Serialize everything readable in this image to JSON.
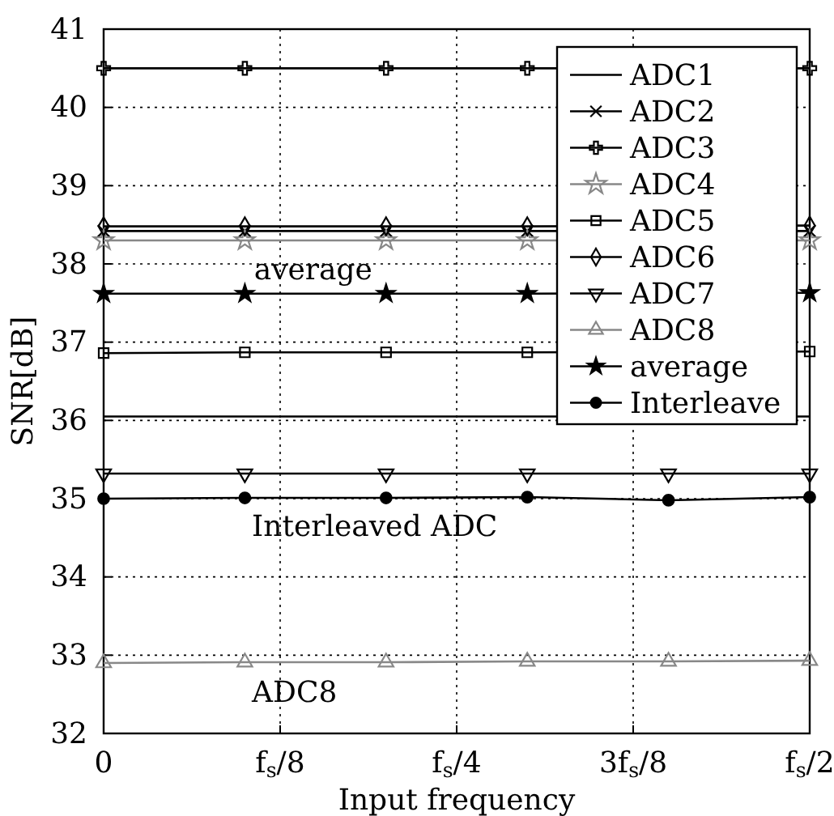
{
  "chart_data": {
    "type": "line",
    "xlabel": "Input frequency",
    "ylabel": "SNR[dB]",
    "categories": [
      null,
      null,
      null,
      null,
      null,
      null
    ],
    "ylim": [
      32,
      41
    ],
    "yticks": [
      32,
      33,
      34,
      35,
      36,
      37,
      38,
      39,
      40,
      41
    ],
    "grid": true,
    "legend": "top right",
    "line_style": "solid",
    "series": [
      {
        "name": "ADC1",
        "color": "#000000",
        "marker": "none",
        "values": [
          36.05,
          36.05,
          36.05,
          36.05,
          null,
          36.05
        ]
      },
      {
        "name": "ADC2",
        "color": "#000000",
        "marker": "x",
        "values": [
          38.42,
          38.42,
          38.42,
          38.42,
          null,
          38.42
        ]
      },
      {
        "name": "ADC3",
        "color": "#000000",
        "marker": "cross",
        "values": [
          40.5,
          40.5,
          40.5,
          40.5,
          null,
          40.5
        ]
      },
      {
        "name": "ADC4",
        "color": "#888888",
        "marker": "star",
        "values": [
          38.3,
          38.3,
          38.3,
          38.3,
          null,
          38.3
        ]
      },
      {
        "name": "ADC5",
        "color": "#000000",
        "marker": "square",
        "values": [
          36.86,
          36.87,
          36.87,
          36.87,
          null,
          36.88
        ]
      },
      {
        "name": "ADC6",
        "color": "#000000",
        "marker": "diamond",
        "values": [
          38.48,
          38.48,
          38.48,
          38.48,
          null,
          38.49
        ]
      },
      {
        "name": "ADC7",
        "color": "#000000",
        "marker": "triangle-down",
        "values": [
          35.32,
          35.32,
          35.32,
          35.32,
          35.32,
          35.32
        ]
      },
      {
        "name": "ADC8",
        "color": "#888888",
        "marker": "triangle",
        "values": [
          32.9,
          32.91,
          32.91,
          32.92,
          32.92,
          32.93
        ]
      },
      {
        "name": "average",
        "color": "#000000",
        "marker": "star",
        "values": [
          37.62,
          37.62,
          37.62,
          37.62,
          null,
          37.63
        ]
      },
      {
        "name": "Interleave",
        "color": "#000000",
        "marker": "circle",
        "values": [
          35.0,
          35.01,
          35.01,
          35.02,
          34.98,
          35.02
        ]
      }
    ],
    "annotations": [
      "average",
      "Interleaved ADC",
      "ADC8",
      "0",
      "f$_{s}$/8",
      "f$_{s}$/4",
      "3f$_{s}$/8",
      "f$_{s}$/2"
    ]
  }
}
